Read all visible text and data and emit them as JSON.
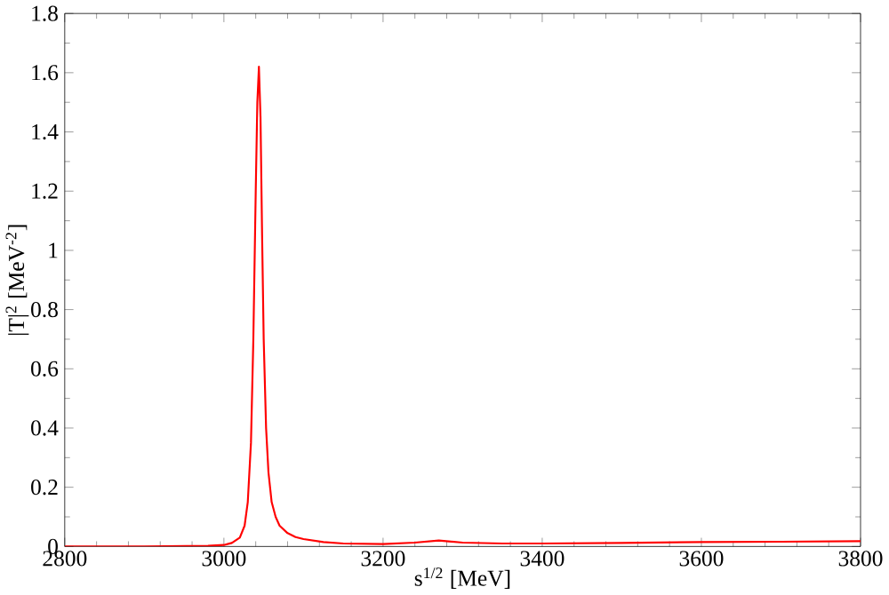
{
  "chart_data": {
    "type": "line",
    "xlabel": "s$^{1/2}$ [MeV]",
    "ylabel": "|T|$^{2}$ [MeV$^{-2}$]",
    "xlim": [
      2800,
      3800
    ],
    "xticks": [
      2800,
      3000,
      3200,
      3400,
      3600,
      3800
    ],
    "ylim": [
      0,
      1.8
    ],
    "yticks": [
      0,
      0.2,
      0.4,
      0.6,
      0.8,
      1,
      1.2,
      1.4,
      1.6,
      1.8
    ],
    "grid": false,
    "legend": false,
    "marker": "none",
    "line_style": "solid",
    "series": [
      {
        "color": "#ff0000",
        "x": [
          2800,
          2900,
          2980,
          3000,
          3010,
          3020,
          3026,
          3030,
          3034,
          3037,
          3040,
          3042,
          3044,
          3046,
          3048,
          3050,
          3053,
          3056,
          3060,
          3065,
          3070,
          3080,
          3090,
          3100,
          3125,
          3150,
          3200,
          3240,
          3270,
          3300,
          3350,
          3400,
          3500,
          3600,
          3700,
          3800
        ],
        "values": [
          0,
          0,
          0.002,
          0.005,
          0.012,
          0.03,
          0.07,
          0.15,
          0.35,
          0.7,
          1.2,
          1.5,
          1.62,
          1.45,
          1.05,
          0.7,
          0.4,
          0.25,
          0.15,
          0.1,
          0.07,
          0.045,
          0.032,
          0.025,
          0.015,
          0.01,
          0.008,
          0.013,
          0.02,
          0.013,
          0.01,
          0.01,
          0.012,
          0.015,
          0.016,
          0.018
        ]
      }
    ]
  }
}
